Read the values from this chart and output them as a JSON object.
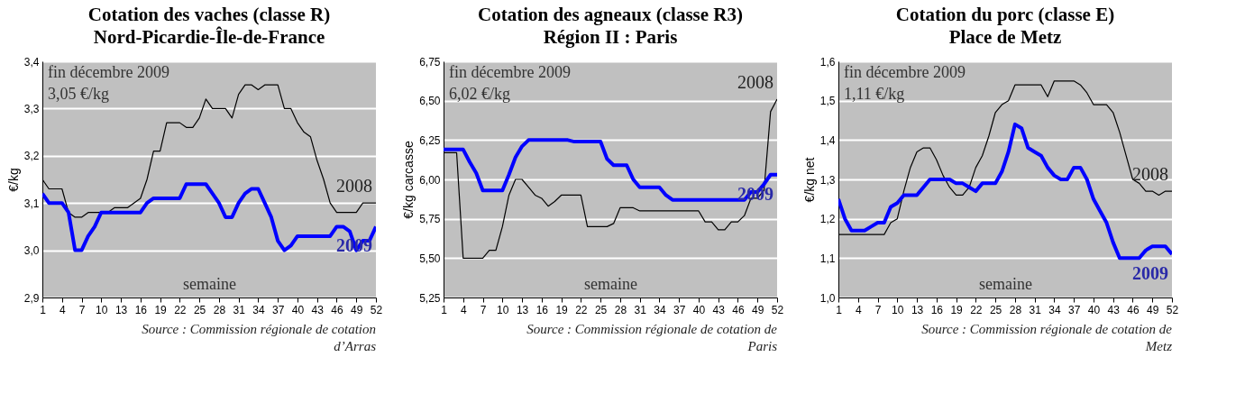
{
  "chart_data": [
    {
      "type": "line",
      "title": "Cotation des vaches (classe R)",
      "subtitle": "Nord-Picardie-Île-de-France",
      "xlabel": "semaine",
      "ylabel": "€/kg",
      "x": [
        1,
        2,
        3,
        4,
        5,
        6,
        7,
        8,
        9,
        10,
        11,
        12,
        13,
        14,
        15,
        16,
        17,
        18,
        19,
        20,
        21,
        22,
        23,
        24,
        25,
        26,
        27,
        28,
        29,
        30,
        31,
        32,
        33,
        34,
        35,
        36,
        37,
        38,
        39,
        40,
        41,
        42,
        43,
        44,
        45,
        46,
        47,
        48,
        49,
        50,
        51,
        52
      ],
      "xlim": [
        1,
        52
      ],
      "xticks": [
        1,
        4,
        7,
        10,
        13,
        16,
        19,
        22,
        25,
        28,
        31,
        34,
        37,
        40,
        43,
        46,
        49,
        52
      ],
      "ylim": [
        2.9,
        3.4
      ],
      "yticks": [
        {
          "value": 2.9,
          "label": "2,9"
        },
        {
          "value": 3.0,
          "label": "3,0"
        },
        {
          "value": 3.1,
          "label": "3,1"
        },
        {
          "value": 3.2,
          "label": "3,2"
        },
        {
          "value": 3.3,
          "label": "3,3"
        },
        {
          "value": 3.4,
          "label": "3,4"
        }
      ],
      "grid": "y",
      "legend": false,
      "series": [
        {
          "name": "2008",
          "color": "#000000",
          "values": [
            3.15,
            3.13,
            3.13,
            3.13,
            3.08,
            3.07,
            3.07,
            3.08,
            3.08,
            3.08,
            3.08,
            3.09,
            3.09,
            3.09,
            3.1,
            3.11,
            3.15,
            3.21,
            3.21,
            3.27,
            3.27,
            3.27,
            3.26,
            3.26,
            3.28,
            3.32,
            3.3,
            3.3,
            3.3,
            3.28,
            3.33,
            3.35,
            3.35,
            3.34,
            3.35,
            3.35,
            3.35,
            3.3,
            3.3,
            3.27,
            3.25,
            3.24,
            3.19,
            3.15,
            3.1,
            3.08,
            3.08,
            3.08,
            3.08,
            3.1,
            3.1,
            3.1
          ]
        },
        {
          "name": "2009",
          "color": "#0000ff",
          "values": [
            3.12,
            3.1,
            3.1,
            3.1,
            3.08,
            3.0,
            3.0,
            3.03,
            3.05,
            3.08,
            3.08,
            3.08,
            3.08,
            3.08,
            3.08,
            3.08,
            3.1,
            3.11,
            3.11,
            3.11,
            3.11,
            3.11,
            3.14,
            3.14,
            3.14,
            3.14,
            3.12,
            3.1,
            3.07,
            3.07,
            3.1,
            3.12,
            3.13,
            3.13,
            3.1,
            3.07,
            3.02,
            3.0,
            3.01,
            3.03,
            3.03,
            3.03,
            3.03,
            3.03,
            3.03,
            3.05,
            3.05,
            3.04,
            3.0,
            3.02,
            3.02,
            3.05
          ]
        }
      ],
      "annotations": [
        "fin décembre 2009",
        "3,05 €/kg",
        "Source : Commission régionale de cotation d’Arras"
      ]
    },
    {
      "type": "line",
      "title": "Cotation des agneaux (classe R3)",
      "subtitle": "Région II : Paris",
      "xlabel": "semaine",
      "ylabel": "€/kg carcasse",
      "x": [
        1,
        2,
        3,
        4,
        5,
        6,
        7,
        8,
        9,
        10,
        11,
        12,
        13,
        14,
        15,
        16,
        17,
        18,
        19,
        20,
        21,
        22,
        23,
        24,
        25,
        26,
        27,
        28,
        29,
        30,
        31,
        32,
        33,
        34,
        35,
        36,
        37,
        38,
        39,
        40,
        41,
        42,
        43,
        44,
        45,
        46,
        47,
        48,
        49,
        50,
        51,
        52
      ],
      "xlim": [
        1,
        52
      ],
      "xticks": [
        1,
        4,
        7,
        10,
        13,
        16,
        19,
        22,
        25,
        28,
        31,
        34,
        37,
        40,
        43,
        46,
        49,
        52
      ],
      "ylim": [
        5.25,
        6.75
      ],
      "yticks": [
        {
          "value": 5.25,
          "label": "5,25"
        },
        {
          "value": 5.5,
          "label": "5,50"
        },
        {
          "value": 5.75,
          "label": "5,75"
        },
        {
          "value": 6.0,
          "label": "6,00"
        },
        {
          "value": 6.25,
          "label": "6,25"
        },
        {
          "value": 6.5,
          "label": "6,50"
        },
        {
          "value": 6.75,
          "label": "6,75"
        }
      ],
      "grid": "y",
      "legend": false,
      "series": [
        {
          "name": "2008",
          "color": "#000000",
          "values": [
            6.17,
            6.17,
            6.17,
            5.5,
            5.5,
            5.5,
            5.5,
            5.55,
            5.55,
            5.7,
            5.9,
            6.0,
            6.0,
            5.95,
            5.9,
            5.88,
            5.83,
            5.86,
            5.9,
            5.9,
            5.9,
            5.9,
            5.7,
            5.7,
            5.7,
            5.7,
            5.72,
            5.82,
            5.82,
            5.82,
            5.8,
            5.8,
            5.8,
            5.8,
            5.8,
            5.8,
            5.8,
            5.8,
            5.8,
            5.8,
            5.73,
            5.73,
            5.68,
            5.68,
            5.73,
            5.73,
            5.77,
            5.88,
            5.88,
            5.93,
            6.43,
            6.51
          ]
        },
        {
          "name": "2009",
          "color": "#0000ff",
          "values": [
            6.19,
            6.19,
            6.19,
            6.19,
            6.11,
            6.04,
            5.93,
            5.93,
            5.93,
            5.93,
            6.03,
            6.14,
            6.21,
            6.25,
            6.25,
            6.25,
            6.25,
            6.25,
            6.25,
            6.25,
            6.24,
            6.24,
            6.24,
            6.24,
            6.24,
            6.13,
            6.09,
            6.09,
            6.09,
            6.0,
            5.95,
            5.95,
            5.95,
            5.95,
            5.9,
            5.87,
            5.87,
            5.87,
            5.87,
            5.87,
            5.87,
            5.87,
            5.87,
            5.87,
            5.87,
            5.87,
            5.87,
            5.92,
            5.92,
            5.97,
            6.03,
            6.03
          ]
        }
      ],
      "annotations": [
        "fin décembre 2009",
        "6,02 €/kg",
        "Source : Commission régionale de cotation de Paris"
      ]
    },
    {
      "type": "line",
      "title": "Cotation du porc (classe E)",
      "subtitle": "Place de Metz",
      "xlabel": "semaine",
      "ylabel": "€/kg net",
      "x": [
        1,
        2,
        3,
        4,
        5,
        6,
        7,
        8,
        9,
        10,
        11,
        12,
        13,
        14,
        15,
        16,
        17,
        18,
        19,
        20,
        21,
        22,
        23,
        24,
        25,
        26,
        27,
        28,
        29,
        30,
        31,
        32,
        33,
        34,
        35,
        36,
        37,
        38,
        39,
        40,
        41,
        42,
        43,
        44,
        45,
        46,
        47,
        48,
        49,
        50,
        51,
        52
      ],
      "xlim": [
        1,
        52
      ],
      "xticks": [
        1,
        4,
        7,
        10,
        13,
        16,
        19,
        22,
        25,
        28,
        31,
        34,
        37,
        40,
        43,
        46,
        49,
        52
      ],
      "ylim": [
        1.0,
        1.6
      ],
      "yticks": [
        {
          "value": 1.0,
          "label": "1,0"
        },
        {
          "value": 1.1,
          "label": "1,1"
        },
        {
          "value": 1.2,
          "label": "1,2"
        },
        {
          "value": 1.3,
          "label": "1,3"
        },
        {
          "value": 1.4,
          "label": "1,4"
        },
        {
          "value": 1.5,
          "label": "1,5"
        },
        {
          "value": 1.6,
          "label": "1,6"
        }
      ],
      "grid": "y",
      "legend": false,
      "series": [
        {
          "name": "2008",
          "color": "#000000",
          "values": [
            1.16,
            1.16,
            1.16,
            1.16,
            1.16,
            1.16,
            1.16,
            1.16,
            1.19,
            1.2,
            1.27,
            1.33,
            1.37,
            1.38,
            1.38,
            1.35,
            1.31,
            1.28,
            1.26,
            1.26,
            1.28,
            1.33,
            1.36,
            1.41,
            1.47,
            1.49,
            1.5,
            1.54,
            1.54,
            1.54,
            1.54,
            1.54,
            1.51,
            1.55,
            1.55,
            1.55,
            1.55,
            1.54,
            1.52,
            1.49,
            1.49,
            1.49,
            1.47,
            1.42,
            1.36,
            1.3,
            1.29,
            1.27,
            1.27,
            1.26,
            1.27,
            1.27
          ]
        },
        {
          "name": "2009",
          "color": "#0000ff",
          "values": [
            1.25,
            1.2,
            1.17,
            1.17,
            1.17,
            1.18,
            1.19,
            1.19,
            1.23,
            1.24,
            1.26,
            1.26,
            1.26,
            1.28,
            1.3,
            1.3,
            1.3,
            1.3,
            1.29,
            1.29,
            1.28,
            1.27,
            1.29,
            1.29,
            1.29,
            1.32,
            1.37,
            1.44,
            1.43,
            1.38,
            1.37,
            1.36,
            1.33,
            1.31,
            1.3,
            1.3,
            1.33,
            1.33,
            1.3,
            1.25,
            1.22,
            1.19,
            1.14,
            1.1,
            1.1,
            1.1,
            1.1,
            1.12,
            1.13,
            1.13,
            1.13,
            1.11
          ]
        }
      ],
      "annotations": [
        "fin décembre 2009",
        "1,11 €/kg",
        "Source : Commission régionale de cotation de Metz"
      ]
    }
  ]
}
